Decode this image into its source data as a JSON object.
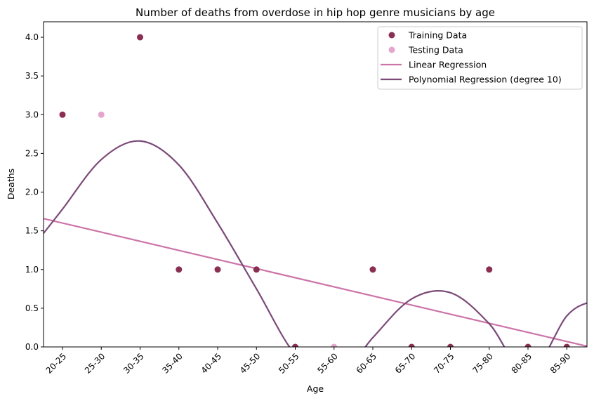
{
  "chart_data": {
    "type": "scatter",
    "title": "Number of deaths from overdose in hip hop genre musicians by age",
    "xlabel": "Age",
    "ylabel": "Deaths",
    "categories": [
      "20-25",
      "25-30",
      "30-35",
      "35-40",
      "40-45",
      "45-50",
      "50-55",
      "55-60",
      "60-65",
      "65-70",
      "70-75",
      "75-80",
      "80-85",
      "85-90"
    ],
    "ylim": [
      0,
      4.2
    ],
    "yticks": [
      "0.0",
      "0.5",
      "1.0",
      "1.5",
      "2.0",
      "2.5",
      "3.0",
      "3.5",
      "4.0"
    ],
    "grid": false,
    "legend_position": "top-right",
    "series": [
      {
        "name": "Training Data",
        "kind": "points",
        "color": "#8b2f52",
        "points": [
          {
            "x": "20-25",
            "y": 3
          },
          {
            "x": "30-35",
            "y": 4
          },
          {
            "x": "35-40",
            "y": 1
          },
          {
            "x": "40-45",
            "y": 1
          },
          {
            "x": "45-50",
            "y": 1
          },
          {
            "x": "50-55",
            "y": 0
          },
          {
            "x": "60-65",
            "y": 1
          },
          {
            "x": "65-70",
            "y": 0
          },
          {
            "x": "70-75",
            "y": 0
          },
          {
            "x": "75-80",
            "y": 1
          },
          {
            "x": "80-85",
            "y": 0
          },
          {
            "x": "85-90",
            "y": 0
          }
        ]
      },
      {
        "name": "Testing Data",
        "kind": "points",
        "color": "#e4a6cc",
        "points": [
          {
            "x": "25-30",
            "y": 3
          },
          {
            "x": "55-60",
            "y": 0
          }
        ]
      },
      {
        "name": "Linear Regression",
        "kind": "line",
        "color": "#cc74a8",
        "points": [
          {
            "x": "20-25",
            "y": 1.6
          },
          {
            "x": "85-90",
            "y": 0.07
          }
        ]
      },
      {
        "name": "Polynomial Regression (degree 10)",
        "kind": "line",
        "color": "#7b4a78",
        "points": [
          {
            "x": "20-25",
            "y": 1.78
          },
          {
            "x": "25-30",
            "y": 2.42
          },
          {
            "x": "30-35",
            "y": 2.66
          },
          {
            "x": "35-40",
            "y": 2.35
          },
          {
            "x": "40-45",
            "y": 1.6
          },
          {
            "x": "45-50",
            "y": 0.75
          },
          {
            "x": "50-55",
            "y": -0.1
          },
          {
            "x": "55-60",
            "y": -0.45
          },
          {
            "x": "60-65",
            "y": 0.12
          },
          {
            "x": "65-70",
            "y": 0.62
          },
          {
            "x": "70-75",
            "y": 0.7
          },
          {
            "x": "75-80",
            "y": 0.3
          },
          {
            "x": "80-85",
            "y": -0.35
          },
          {
            "x": "85-90",
            "y": 0.4
          }
        ]
      }
    ]
  }
}
